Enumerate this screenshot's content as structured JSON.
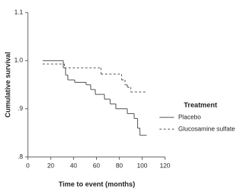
{
  "chart_data": {
    "type": "step",
    "x_label": "Time to event (months)",
    "y_label": "Cumulative survival",
    "xlim": [
      0,
      120
    ],
    "xticks": [
      0,
      20,
      40,
      60,
      80,
      100,
      120
    ],
    "ylim": [
      0.8,
      1.1
    ],
    "yticks": [
      {
        "value": 0.8,
        "label": ".8"
      },
      {
        "value": 0.9,
        "label": ".9"
      },
      {
        "value": 1,
        "label": "1.0"
      },
      1.1
    ],
    "legend_title": "Treatment",
    "series": [
      {
        "name": "Placebo",
        "color": "#444444",
        "dash": "none",
        "x": [
          13,
          31,
          33,
          35,
          41,
          51,
          55,
          59,
          67,
          72,
          77,
          87,
          93,
          96,
          98,
          104
        ],
        "values": [
          1.0,
          0.985,
          0.97,
          0.96,
          0.955,
          0.95,
          0.94,
          0.93,
          0.92,
          0.91,
          0.9,
          0.89,
          0.88,
          0.86,
          0.845,
          0.845
        ]
      },
      {
        "name": "Glucosamine sulfate",
        "color": "#444444",
        "dash": "3,3",
        "x": [
          13,
          32,
          64,
          82,
          85,
          87,
          90,
          104
        ],
        "values": [
          0.993,
          0.985,
          0.972,
          0.96,
          0.95,
          0.945,
          0.935,
          0.935
        ]
      }
    ]
  }
}
